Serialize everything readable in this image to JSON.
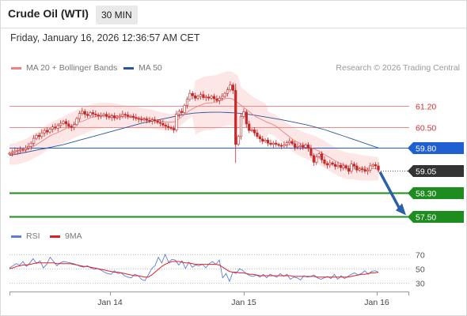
{
  "header": {
    "instrument": "Crude Oil (WTI)",
    "interval": "30 MIN",
    "datetime": "Friday, January 16, 2026 12:36:57 AM CET",
    "credit": "Research © 2026 Trading Central"
  },
  "legend": {
    "ma20": "MA 20 + Bollinger Bands",
    "ma50": "MA 50",
    "rsi": "RSI",
    "ma9": "9MA"
  },
  "colors": {
    "ma20": "#f08080",
    "bollinger_fill": "#fde2e2",
    "ma50": "#29559a",
    "candle": "#c62828",
    "resistance": "#f08a8a",
    "pivot": "#1f5fcf",
    "support": "#1e8c1e",
    "last_price_bg": "#333333",
    "arrow": "#2b5fa6",
    "rsi": "#5b7ed6",
    "rsi_ma": "#e02020"
  },
  "chart_data": [
    {
      "type": "candlestick",
      "x_labels": [
        "Jan 14",
        "Jan 15",
        "Jan 16"
      ],
      "y_range": [
        57.3,
        62.1
      ],
      "levels": [
        {
          "label": "61.20",
          "value": 61.2,
          "kind": "resistance"
        },
        {
          "label": "60.50",
          "value": 60.5,
          "kind": "resistance"
        },
        {
          "label": "59.80",
          "value": 59.8,
          "kind": "pivot"
        },
        {
          "label": "59.05",
          "value": 59.05,
          "kind": "last"
        },
        {
          "label": "58.30",
          "value": 58.3,
          "kind": "support"
        },
        {
          "label": "57.50",
          "value": 57.5,
          "kind": "support"
        }
      ],
      "close": [
        59.62,
        59.66,
        59.7,
        59.72,
        59.75,
        59.74,
        59.8,
        59.85,
        59.95,
        60.12,
        60.22,
        60.18,
        60.3,
        60.38,
        60.33,
        60.42,
        60.5,
        60.46,
        60.55,
        60.62,
        60.68,
        60.6,
        60.52,
        60.48,
        60.58,
        60.78,
        60.95,
        61.02,
        60.92,
        60.88,
        60.98,
        60.93,
        60.9,
        60.86,
        60.88,
        60.92,
        60.85,
        60.82,
        60.87,
        60.8,
        60.83,
        60.86,
        60.92,
        60.9,
        60.85,
        60.86,
        60.82,
        60.78,
        60.76,
        60.74,
        60.76,
        60.72,
        60.7,
        60.74,
        60.7,
        60.65,
        60.62,
        60.56,
        60.52,
        60.48,
        60.45,
        60.4,
        60.92,
        61.02,
        60.98,
        61.22,
        61.42,
        61.62,
        61.54,
        61.46,
        61.52,
        61.58,
        61.48,
        61.5,
        61.46,
        61.52,
        61.44,
        61.38,
        61.46,
        61.52,
        61.62,
        61.74,
        61.9,
        61.72,
        59.92,
        60.18,
        60.85,
        61.0,
        60.6,
        60.38,
        60.4,
        60.3,
        60.18,
        60.1,
        60.02,
        60.06,
        59.96,
        59.92,
        59.96,
        59.92,
        59.88,
        59.86,
        59.9,
        59.97,
        60.02,
        59.94,
        59.82,
        59.85,
        59.88,
        59.82,
        59.9,
        59.78,
        59.55,
        59.32,
        59.5,
        59.6,
        59.4,
        59.28,
        59.23,
        59.3,
        59.25,
        59.18,
        59.22,
        59.14,
        59.2,
        59.12,
        59.02,
        59.26,
        59.2,
        59.06,
        59.1,
        59.08,
        59.02,
        59.06,
        59.2,
        59.24,
        59.2,
        59.06
      ],
      "ma20": [
        59.58,
        59.6,
        59.6,
        59.64,
        59.67,
        59.7,
        59.75,
        59.8,
        59.86,
        59.92,
        59.98,
        60.05,
        60.12,
        60.18,
        60.24,
        60.28,
        60.32,
        60.37,
        60.42,
        60.47,
        60.52,
        60.57,
        60.62,
        60.66,
        60.69,
        60.73,
        60.78,
        60.82,
        60.84,
        60.86,
        60.87,
        60.88,
        60.89,
        60.89,
        60.88,
        60.87,
        60.86,
        60.85,
        60.84,
        60.83,
        60.82,
        60.81,
        60.8,
        60.8,
        60.79,
        60.78,
        60.77,
        60.75,
        60.73,
        60.71,
        60.69,
        60.67,
        60.66,
        60.66,
        60.67,
        60.72,
        60.8,
        60.88,
        60.96,
        61.04,
        61.1,
        61.15,
        61.2,
        61.24,
        61.28,
        61.3,
        61.3,
        61.32,
        61.34,
        61.38,
        61.42,
        61.45,
        61.46,
        61.44,
        61.38,
        61.3,
        61.22,
        61.14,
        61.06,
        60.98,
        60.9,
        60.83,
        60.78,
        60.73,
        60.68,
        60.64,
        60.6,
        60.55,
        60.48,
        60.4,
        60.32,
        60.24,
        60.16,
        60.08,
        60.02,
        59.97,
        59.92,
        59.88,
        59.84,
        59.8,
        59.76,
        59.72,
        59.66,
        59.6,
        59.54,
        59.48,
        59.42,
        59.36,
        59.3,
        59.26,
        59.22,
        59.2,
        59.19,
        59.18,
        59.16,
        59.14,
        59.13,
        59.12,
        59.12,
        59.11,
        59.11,
        59.1
      ],
      "ma50": [
        59.55,
        59.6,
        59.66,
        59.72,
        59.78,
        59.84,
        59.9,
        59.98,
        60.06,
        60.14,
        60.22,
        60.3,
        60.38,
        60.46,
        60.54,
        60.62,
        60.68,
        60.74,
        60.8,
        60.86,
        60.92,
        60.96,
        60.98,
        60.99,
        60.99,
        60.98,
        60.96,
        60.93,
        60.89,
        60.84,
        60.79,
        60.74,
        60.68,
        60.62,
        60.56,
        60.48,
        60.4,
        60.3,
        60.2,
        60.1,
        60.0,
        59.9,
        59.8
      ]
    },
    {
      "type": "line",
      "name": "RSI",
      "y_ticks": [
        70,
        50,
        30
      ],
      "rsi": [
        51,
        54,
        57,
        55,
        60,
        53,
        58,
        64,
        57,
        61,
        51,
        56,
        66,
        60,
        54,
        58,
        60,
        59,
        58,
        57,
        55,
        53,
        52,
        54,
        51,
        49,
        50,
        48,
        45,
        43,
        42,
        47,
        43,
        44,
        40,
        38,
        37,
        42,
        40,
        35,
        33,
        41,
        50,
        54,
        66,
        58,
        70,
        59,
        63,
        62,
        55,
        61,
        50,
        59,
        52,
        55,
        54,
        56,
        51,
        57,
        60,
        56,
        62,
        37,
        43,
        32,
        45,
        43,
        50,
        47,
        43,
        40,
        39,
        41,
        38,
        42,
        37,
        42,
        40,
        38,
        43,
        39,
        42,
        35,
        38,
        37,
        34,
        40,
        38,
        39,
        41,
        37,
        35,
        37,
        39,
        36,
        42,
        35,
        40,
        36,
        39,
        42,
        44,
        41,
        43,
        47,
        42,
        46,
        47,
        45
      ],
      "rsi_ma": [
        50,
        51,
        53,
        54,
        55,
        55,
        56,
        57,
        58,
        58,
        58,
        58,
        58,
        58,
        57,
        57,
        57,
        57,
        57,
        56,
        55,
        54,
        53,
        53,
        52,
        51,
        50,
        49,
        48,
        47,
        46,
        45,
        45,
        44,
        43,
        42,
        41,
        40,
        40,
        39,
        38,
        38,
        41,
        45,
        49,
        53,
        56,
        58,
        60,
        60,
        60,
        59,
        58,
        58,
        57,
        56,
        56,
        56,
        56,
        56,
        56,
        56,
        55,
        52,
        49,
        46,
        45,
        45,
        44,
        44,
        43,
        42,
        42,
        41,
        40,
        40,
        40,
        40,
        40,
        40,
        40,
        40,
        40,
        40,
        39,
        39,
        39,
        39,
        39,
        39,
        39,
        38,
        38,
        38,
        38,
        38,
        38,
        38,
        38,
        38,
        38,
        39,
        40,
        41,
        42,
        42,
        43,
        44,
        44,
        45
      ]
    }
  ]
}
